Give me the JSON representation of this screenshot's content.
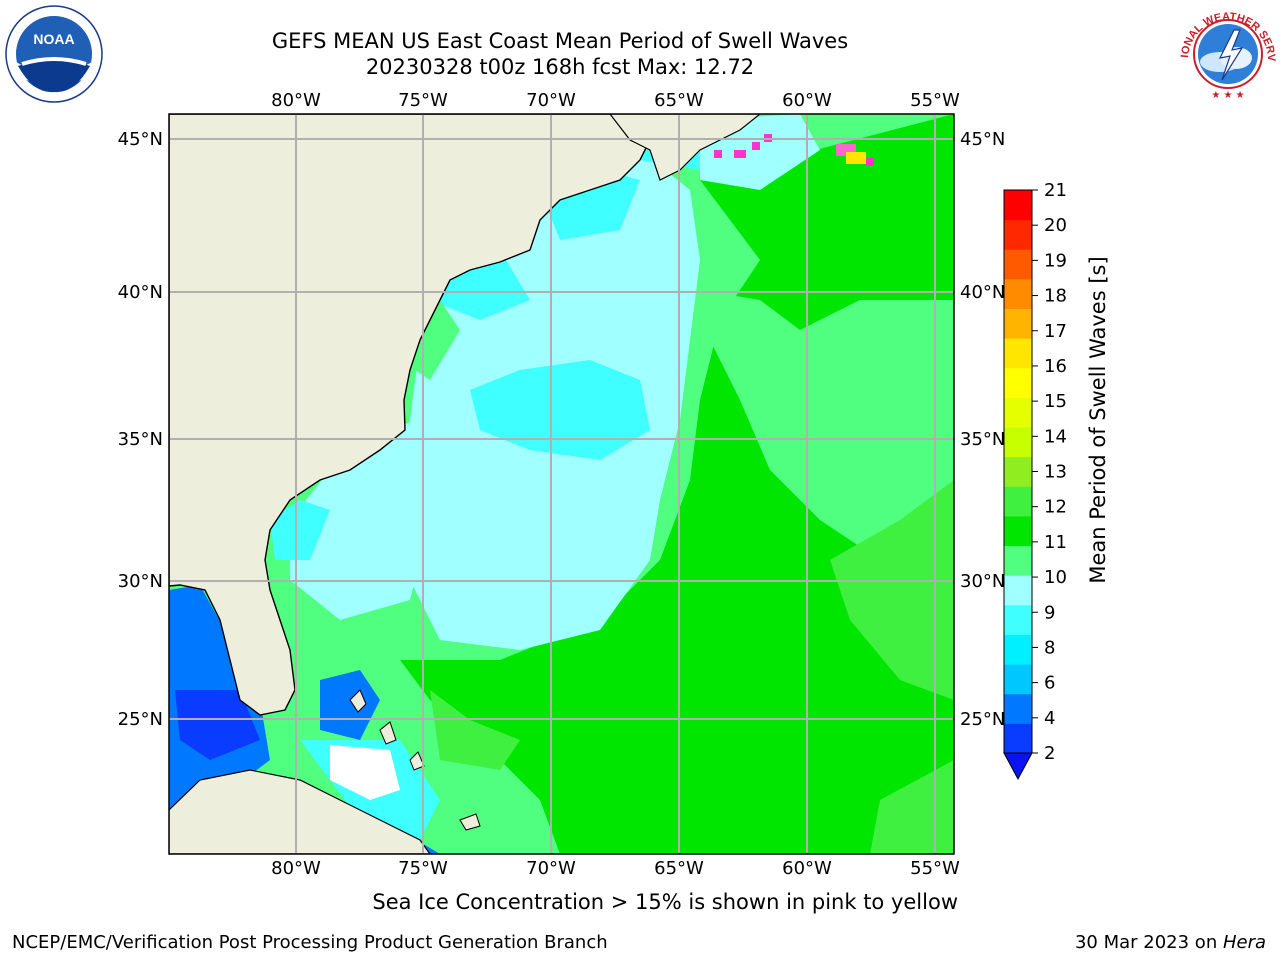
{
  "title": {
    "line1": "GEFS MEAN US East Coast Mean Period of Swell Waves",
    "line2": "20230328 t00z 168h fcst   Max: 12.72"
  },
  "map": {
    "lon_labels": [
      "80°W",
      "75°W",
      "70°W",
      "65°W",
      "60°W",
      "55°W"
    ],
    "lat_labels": [
      "45°N",
      "40°N",
      "35°N",
      "30°N",
      "25°N"
    ],
    "land_color": "#EEEEDD",
    "grid_color": "#B0B0B0"
  },
  "colorbar": {
    "label": "Mean Period of Swell Waves [s]",
    "ticks": [
      "2",
      "4",
      "6",
      "8",
      "9",
      "10",
      "11",
      "12",
      "13",
      "14",
      "15",
      "16",
      "17",
      "18",
      "19",
      "20",
      "21"
    ],
    "colors": [
      "#0A3CFF",
      "#0078FF",
      "#00C8FF",
      "#00F0FF",
      "#40FFFF",
      "#A0FFFF",
      "#50FF80",
      "#00E600",
      "#40F040",
      "#90EE20",
      "#C8FF00",
      "#E6FF00",
      "#FFFF00",
      "#FFE600",
      "#FFB400",
      "#FF8C00",
      "#FF5A00",
      "#FF2800",
      "#FF0000"
    ],
    "extend_color": "#0A14F0"
  },
  "logos": {
    "noaa_text": "NOAA",
    "nws_text": "NATIONAL WEATHER SERVICE"
  },
  "note": "Sea Ice Concentration > 15% is shown in pink to yellow",
  "footer": {
    "left": "NCEP/EMC/Verification Post Processing Product Generation Branch",
    "date": "30 Mar 2023 on ",
    "host": "Hera"
  }
}
